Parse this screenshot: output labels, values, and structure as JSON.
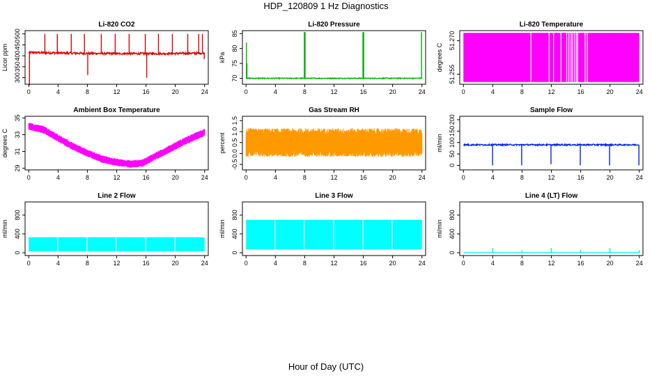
{
  "figure": {
    "title": "HDP_120809  1 Hz Diagnostics",
    "xlabel": "Hour of Day (UTC)"
  },
  "chart_data": [
    {
      "id": "co2",
      "type": "line",
      "title": "Li-820 CO2",
      "ylabel": "Licor ppm",
      "color": "#e00000",
      "xlim": [
        0,
        24
      ],
      "xticks": [
        0,
        4,
        8,
        12,
        16,
        20,
        24
      ],
      "ylim": [
        270,
        515
      ],
      "yticks": [
        300,
        350,
        400,
        450,
        500
      ],
      "pattern": "baseline_spikes",
      "baseline": [
        [
          0,
          415
        ],
        [
          6,
          412
        ],
        [
          12,
          410
        ],
        [
          18,
          410
        ],
        [
          24,
          412
        ]
      ],
      "noise": 5,
      "spikes": [
        [
          0.1,
          265
        ],
        [
          2.2,
          500
        ],
        [
          3.9,
          500
        ],
        [
          5.8,
          500
        ],
        [
          7.6,
          500
        ],
        [
          8.05,
          312
        ],
        [
          9.9,
          500
        ],
        [
          11.8,
          500
        ],
        [
          13.7,
          500
        ],
        [
          15.9,
          500
        ],
        [
          16.1,
          300
        ],
        [
          17.7,
          500
        ],
        [
          19.6,
          500
        ],
        [
          21.7,
          500
        ],
        [
          23.2,
          500
        ],
        [
          23.7,
          500
        ],
        [
          23.95,
          385
        ]
      ]
    },
    {
      "id": "pressure",
      "type": "line",
      "title": "Li-820 Pressure",
      "ylabel": "kPa",
      "color": "#00b000",
      "xlim": [
        0,
        24
      ],
      "xticks": [
        0,
        4,
        8,
        12,
        16,
        20,
        24
      ],
      "ylim": [
        68,
        86
      ],
      "yticks": [
        70,
        75,
        80,
        85
      ],
      "pattern": "baseline_spikes",
      "baseline": [
        [
          0,
          70
        ],
        [
          24,
          70
        ]
      ],
      "noise": 0.15,
      "spikes": [
        [
          0.05,
          82
        ],
        [
          0.12,
          75
        ],
        [
          7.95,
          85.5
        ],
        [
          8.05,
          85.5
        ],
        [
          15.95,
          85.5
        ],
        [
          16.05,
          85.5
        ],
        [
          23.95,
          85.5
        ]
      ]
    },
    {
      "id": "licor_temp",
      "type": "area",
      "title": "Li-820 Temperature",
      "ylabel": "degrees C",
      "color": "#ff00ff",
      "xlim": [
        0,
        24
      ],
      "xticks": [
        0,
        4,
        8,
        12,
        16,
        20,
        24
      ],
      "ylim": [
        51.2505,
        51.2745
      ],
      "yticks": [
        51.255,
        51.27
      ],
      "pattern": "block",
      "block_range": [
        51.2515,
        51.2735
      ],
      "gaps": [
        9.2,
        11.7,
        12.3,
        13.3,
        14.1,
        14.4,
        14.7,
        14.9,
        15.2,
        15.45,
        15.6,
        16.6,
        16.9
      ]
    },
    {
      "id": "box_temp",
      "type": "line",
      "title": "Ambient Box Temperature",
      "ylabel": "degrees C",
      "color": "#ff00ff",
      "xlim": [
        0,
        24
      ],
      "xticks": [
        0,
        4,
        8,
        12,
        16,
        20,
        24
      ],
      "ylim": [
        28.8,
        35.2
      ],
      "yticks": [
        29,
        31,
        33,
        35
      ],
      "pattern": "noisy_band",
      "center": [
        [
          0,
          34.0
        ],
        [
          2,
          33.6
        ],
        [
          4,
          32.6
        ],
        [
          6,
          31.6
        ],
        [
          8,
          30.8
        ],
        [
          10,
          30.1
        ],
        [
          12,
          29.7
        ],
        [
          14,
          29.5
        ],
        [
          15.5,
          29.6
        ],
        [
          17,
          30.3
        ],
        [
          19,
          31.2
        ],
        [
          21,
          32.1
        ],
        [
          23,
          32.9
        ],
        [
          24,
          33.3
        ]
      ],
      "halfwidth": 0.45
    },
    {
      "id": "rh",
      "type": "line",
      "title": "Gas Stream RH",
      "ylabel": "percent",
      "color": "#ff9900",
      "xlim": [
        0,
        24
      ],
      "xticks": [
        0,
        4,
        8,
        12,
        16,
        20,
        24
      ],
      "ylim": [
        -0.75,
        1.7
      ],
      "yticks": [
        -0.5,
        0.0,
        0.5,
        1.0,
        1.5
      ],
      "pattern": "noisy_band",
      "center": [
        [
          0,
          0.5
        ],
        [
          24,
          0.5
        ]
      ],
      "halfwidth": 0.65
    },
    {
      "id": "sample_flow",
      "type": "line",
      "title": "Sample Flow",
      "ylabel": "ml/min",
      "color": "#0020ee",
      "xlim": [
        0,
        24
      ],
      "xticks": [
        0,
        4,
        8,
        12,
        16,
        20,
        24
      ],
      "ylim": [
        -20,
        215
      ],
      "yticks": [
        0,
        50,
        100,
        150,
        200
      ],
      "pattern": "baseline_spikes",
      "baseline": [
        [
          0,
          90
        ],
        [
          24,
          90
        ]
      ],
      "noise": 3,
      "spikes": [
        [
          3.98,
          0
        ],
        [
          7.95,
          0
        ],
        [
          11.95,
          5
        ],
        [
          15.95,
          0
        ],
        [
          19.95,
          0
        ],
        [
          23.95,
          0
        ]
      ]
    },
    {
      "id": "line2",
      "type": "area",
      "title": "Line 2 Flow",
      "ylabel": "ml/min",
      "color": "#00ffff",
      "xlim": [
        0,
        24
      ],
      "xticks": [
        0,
        4,
        8,
        12,
        16,
        20,
        24
      ],
      "ylim": [
        -60,
        1080
      ],
      "yticks": [
        0,
        400,
        800
      ],
      "pattern": "block",
      "block_range": [
        30,
        330
      ],
      "gaps": [
        3.95,
        7.95,
        11.95,
        15.95,
        19.95
      ]
    },
    {
      "id": "line3",
      "type": "area",
      "title": "Line 3 Flow",
      "ylabel": "ml/min",
      "color": "#00ffff",
      "xlim": [
        0,
        24
      ],
      "xticks": [
        0,
        4,
        8,
        12,
        16,
        20,
        24
      ],
      "ylim": [
        -60,
        1080
      ],
      "yticks": [
        0,
        400,
        800
      ],
      "pattern": "block",
      "block_range": [
        70,
        700
      ],
      "gaps": [
        3.95,
        7.95,
        11.95,
        15.95,
        19.95
      ]
    },
    {
      "id": "line4",
      "type": "line",
      "title": "Line 4 (LT) Flow",
      "ylabel": "ml/min",
      "color": "#00eeee",
      "xlim": [
        0,
        24
      ],
      "xticks": [
        0,
        4,
        8,
        12,
        16,
        20,
        24
      ],
      "ylim": [
        -60,
        1080
      ],
      "yticks": [
        0,
        400,
        800
      ],
      "pattern": "baseline_spikes",
      "baseline": [
        [
          0,
          0
        ],
        [
          24,
          0
        ]
      ],
      "noise": 0,
      "spikes": [
        [
          4.0,
          100
        ],
        [
          8.0,
          55
        ],
        [
          12.0,
          100
        ],
        [
          16.0,
          60
        ],
        [
          20.0,
          100
        ],
        [
          24.0,
          55
        ]
      ]
    }
  ]
}
